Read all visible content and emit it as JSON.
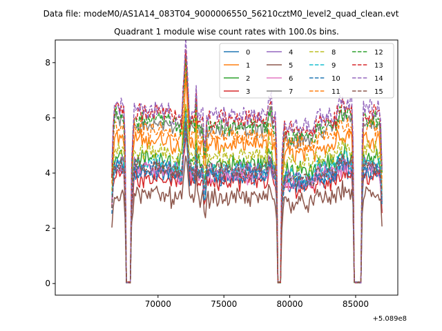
{
  "chart_data": {
    "type": "line",
    "suptitle": "Data file: modeM0/AS1A14_083T04_9000006550_56210cztM0_level2_quad_clean.evt",
    "title": "Quadrant 1 module wise count rates with 100.0s bins.",
    "xlabel": "",
    "ylabel": "",
    "x_offset_label": "+5.089e8",
    "xlim": [
      62200,
      88200
    ],
    "ylim": [
      -0.42,
      8.82
    ],
    "xticks": [
      70000,
      75000,
      80000,
      85000
    ],
    "xtick_labels": [
      "70000",
      "75000",
      "80000",
      "85000"
    ],
    "yticks": [
      0,
      2,
      4,
      6,
      8
    ],
    "ytick_labels": [
      "0",
      "2",
      "4",
      "6",
      "8"
    ],
    "grid": false,
    "legend_position": "top-right",
    "x_range": [
      66500,
      87000
    ],
    "bin_width": 100,
    "segments": [
      [
        66500,
        67550
      ],
      [
        68000,
        79050
      ],
      [
        79400,
        84850
      ],
      [
        85450,
        87000
      ]
    ],
    "gaps": [
      [
        67550,
        68000
      ],
      [
        79050,
        79400
      ],
      [
        84850,
        85450
      ]
    ],
    "flare": {
      "center": 72100,
      "peak_boost": 2.3
    },
    "series": [
      {
        "name": "0",
        "color": "#1f77b4",
        "dash": "solid",
        "level": 3.85
      },
      {
        "name": "1",
        "color": "#ff7f0e",
        "dash": "solid",
        "level": 5.0
      },
      {
        "name": "2",
        "color": "#2ca02c",
        "dash": "solid",
        "level": 4.35
      },
      {
        "name": "3",
        "color": "#d62728",
        "dash": "solid",
        "level": 3.7
      },
      {
        "name": "4",
        "color": "#9467bd",
        "dash": "solid",
        "level": 4.05
      },
      {
        "name": "5",
        "color": "#8c564b",
        "dash": "solid",
        "level": 3.1
      },
      {
        "name": "6",
        "color": "#e377c2",
        "dash": "solid",
        "level": 3.9
      },
      {
        "name": "7",
        "color": "#7f7f7f",
        "dash": "solid",
        "level": 5.6
      },
      {
        "name": "8",
        "color": "#bcbd22",
        "dash": "dashed",
        "level": 4.6
      },
      {
        "name": "9",
        "color": "#17becf",
        "dash": "dashed",
        "level": 4.15
      },
      {
        "name": "10",
        "color": "#1f77b4",
        "dash": "dashed",
        "level": 3.95
      },
      {
        "name": "11",
        "color": "#ff7f0e",
        "dash": "dashed",
        "level": 5.35
      },
      {
        "name": "12",
        "color": "#2ca02c",
        "dash": "dashed",
        "level": 5.7
      },
      {
        "name": "13",
        "color": "#d62728",
        "dash": "dashed",
        "level": 5.95
      },
      {
        "name": "14",
        "color": "#9467bd",
        "dash": "dashed",
        "level": 6.05
      },
      {
        "name": "15",
        "color": "#8c564b",
        "dash": "dashed",
        "level": 4.05
      }
    ]
  }
}
